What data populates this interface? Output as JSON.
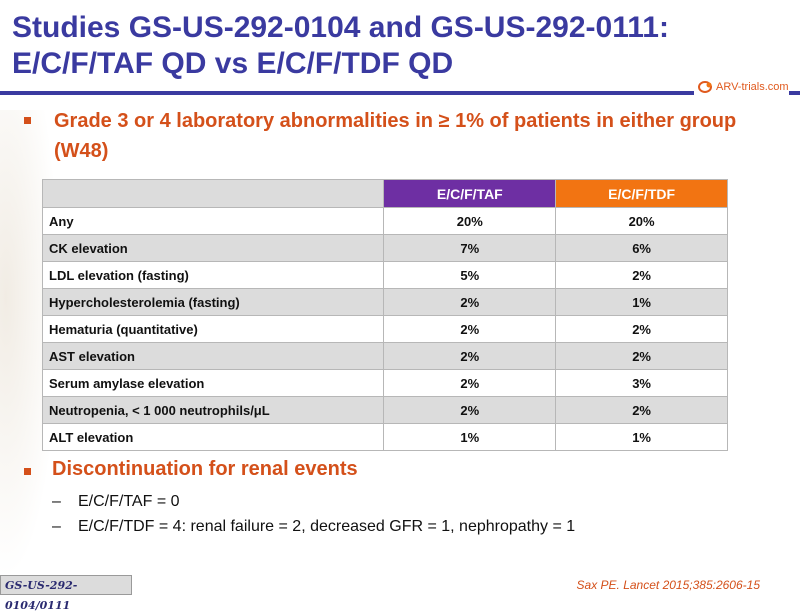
{
  "title": {
    "line1": "Studies GS-US-292-0104 and GS-US-292-0111:",
    "line2": "E/C/F/TAF QD vs E/C/F/TDF QD"
  },
  "logo": {
    "text": "ARV-trials.com",
    "color": "#e05a1e"
  },
  "bullet1": {
    "text": "Grade 3 or 4 laboratory abnormalities in ≥ 1% of patients in either group (W48)"
  },
  "table": {
    "columns": [
      "",
      "E/C/F/TAF",
      "E/C/F/TDF"
    ],
    "rows": [
      {
        "label": "Any",
        "taf": "20%",
        "tdf": "20%"
      },
      {
        "label": "CK elevation",
        "taf": "7%",
        "tdf": "6%"
      },
      {
        "label": "LDL elevation (fasting)",
        "taf": "5%",
        "tdf": "2%"
      },
      {
        "label": "Hypercholesterolemia (fasting)",
        "taf": "2%",
        "tdf": "1%"
      },
      {
        "label": "Hematuria (quantitative)",
        "taf": "2%",
        "tdf": "2%"
      },
      {
        "label": "AST elevation",
        "taf": "2%",
        "tdf": "2%"
      },
      {
        "label": "Serum amylase elevation",
        "taf": "2%",
        "tdf": "3%"
      },
      {
        "label": "Neutropenia, < 1 000 neutrophils/μL",
        "taf": "2%",
        "tdf": "2%"
      },
      {
        "label": "ALT elevation",
        "taf": "1%",
        "tdf": "1%"
      }
    ],
    "colors": {
      "taf_header": "#6e2fa3",
      "tdf_header": "#f27412",
      "stripe": "#dcdcdc"
    }
  },
  "bullet2": {
    "text": "Discontinuation for renal events",
    "subitems": [
      "E/C/F/TAF = 0",
      "E/C/F/TDF = 4: renal failure = 2, decreased GFR = 1, nephropathy = 1"
    ]
  },
  "footer": {
    "tag": "GS-US-292-0104/0111",
    "citation": "Sax PE. Lancet 2015;385:2606-15"
  },
  "colors": {
    "title": "#3a3aa0",
    "accent": "#d4501a"
  }
}
